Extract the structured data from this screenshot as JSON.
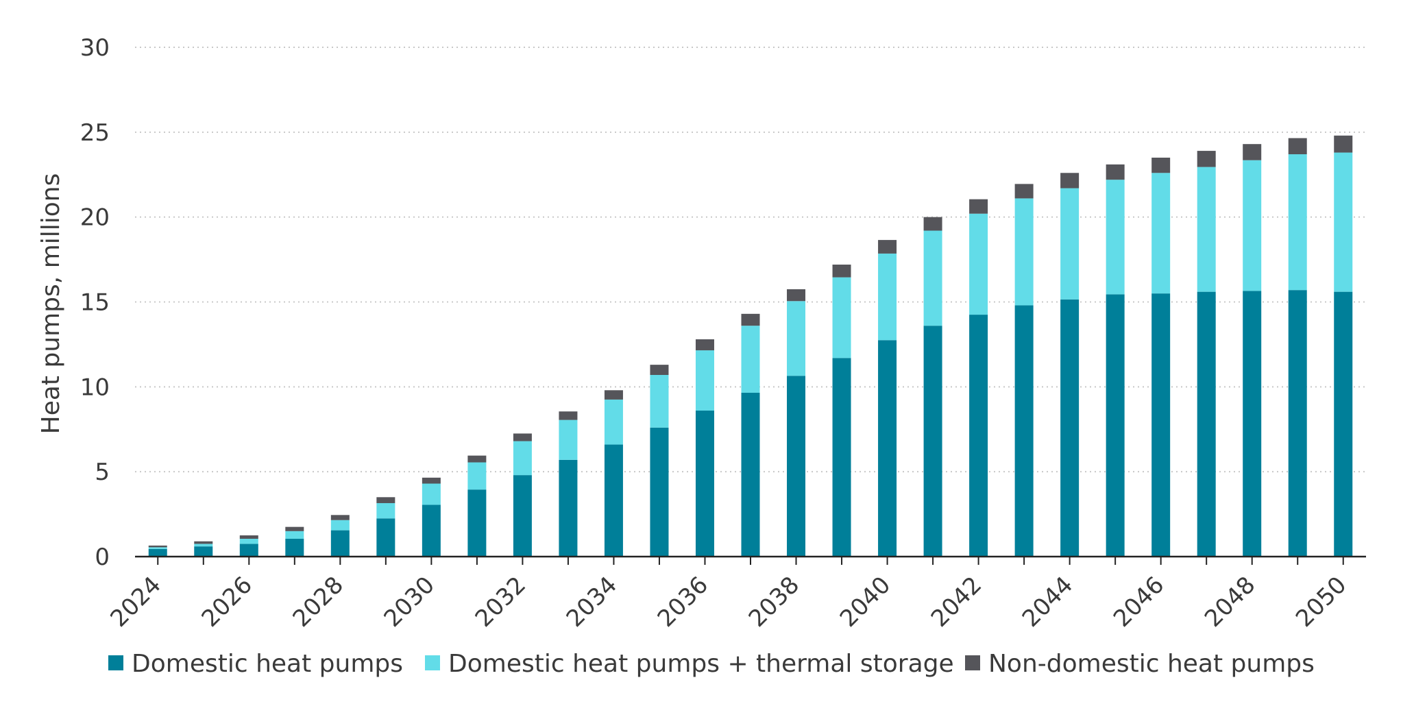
{
  "chart_data": {
    "type": "bar",
    "stacked": true,
    "ylabel": "Heat pumps, millions",
    "xlabel": "",
    "ylim": [
      0,
      30
    ],
    "yticks": [
      "0",
      "5",
      "10",
      "15",
      "20",
      "25",
      "30"
    ],
    "grid": "horizontal-dotted",
    "legend_position": "bottom",
    "categories": [
      "2024",
      "2025",
      "2026",
      "2027",
      "2028",
      "2029",
      "2030",
      "2031",
      "2032",
      "2033",
      "2034",
      "2035",
      "2036",
      "2037",
      "2038",
      "2039",
      "2040",
      "2041",
      "2042",
      "2043",
      "2044",
      "2045",
      "2046",
      "2047",
      "2048",
      "2049",
      "2050"
    ],
    "x_tick_labels": [
      "2024",
      "",
      "2026",
      "",
      "2028",
      "",
      "2030",
      "",
      "2032",
      "",
      "2034",
      "",
      "2036",
      "",
      "2038",
      "",
      "2040",
      "",
      "2042",
      "",
      "2044",
      "",
      "2046",
      "",
      "2048",
      "",
      "2050"
    ],
    "series": [
      {
        "name": "Domestic heat pumps",
        "color": "#007f99",
        "values": [
          0.45,
          0.6,
          0.75,
          1.05,
          1.55,
          2.25,
          3.05,
          3.95,
          4.8,
          5.7,
          6.6,
          7.6,
          8.6,
          9.65,
          10.65,
          11.7,
          12.75,
          13.6,
          14.25,
          14.8,
          15.15,
          15.45,
          15.5,
          15.6,
          15.65,
          15.7,
          15.6
        ]
      },
      {
        "name": "Domestic heat pumps + thermal storage",
        "color": "#62dce8",
        "values": [
          0.1,
          0.15,
          0.3,
          0.45,
          0.6,
          0.9,
          1.25,
          1.6,
          2.0,
          2.35,
          2.65,
          3.1,
          3.55,
          3.95,
          4.4,
          4.75,
          5.1,
          5.6,
          5.95,
          6.3,
          6.55,
          6.75,
          7.1,
          7.35,
          7.7,
          8.0,
          8.2
        ]
      },
      {
        "name": "Non-domestic heat pumps",
        "color": "#55555a",
        "values": [
          0.1,
          0.15,
          0.2,
          0.25,
          0.3,
          0.35,
          0.35,
          0.4,
          0.45,
          0.5,
          0.55,
          0.6,
          0.65,
          0.7,
          0.7,
          0.75,
          0.8,
          0.8,
          0.85,
          0.85,
          0.9,
          0.9,
          0.9,
          0.95,
          0.95,
          0.95,
          1.0
        ]
      }
    ]
  }
}
